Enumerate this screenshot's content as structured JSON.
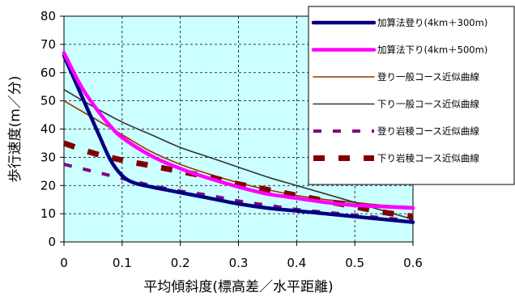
{
  "chart_data": {
    "type": "line",
    "xlabel": "平均傾斜度(標高差／水平距離)",
    "ylabel": "歩行速度(m／分)",
    "xlim": [
      0,
      0.6
    ],
    "ylim": [
      0,
      80
    ],
    "xticks": [
      "0",
      "0.1",
      "0.2",
      "0.3",
      "0.4",
      "0.5",
      "0.6"
    ],
    "yticks": [
      "0",
      "10",
      "20",
      "30",
      "40",
      "50",
      "60",
      "70",
      "80"
    ],
    "grid": "dashed",
    "plot_background": "#ccffff",
    "legend_position": "top-right",
    "series": [
      {
        "name": "加算法登り(4km＋300m)",
        "color": "#000080",
        "style": "thick",
        "x": [
          0,
          0.03,
          0.06,
          0.08,
          0.1,
          0.12,
          0.15,
          0.2,
          0.25,
          0.3,
          0.35,
          0.4,
          0.45,
          0.5,
          0.55,
          0.6
        ],
        "y": [
          66,
          52,
          38,
          29,
          23.5,
          21,
          19.5,
          17.5,
          15.5,
          13.5,
          12,
          11,
          10,
          9,
          8,
          7
        ]
      },
      {
        "name": "加算法下り(4km＋500m)",
        "color": "#ff00ff",
        "style": "thick",
        "x": [
          0,
          0.03,
          0.06,
          0.08,
          0.1,
          0.15,
          0.2,
          0.25,
          0.3,
          0.35,
          0.4,
          0.45,
          0.5,
          0.55,
          0.6
        ],
        "y": [
          67,
          55,
          46,
          41,
          37,
          30.5,
          26,
          22.5,
          19.5,
          17,
          15.5,
          14,
          13,
          12.5,
          12
        ]
      },
      {
        "name": "登り一般コース近似曲線",
        "color": "#993300",
        "style": "thin",
        "x": [
          0,
          0.05,
          0.1,
          0.15,
          0.2,
          0.25,
          0.3,
          0.35,
          0.4,
          0.45,
          0.5,
          0.55,
          0.6
        ],
        "y": [
          50,
          44,
          38,
          32,
          27.5,
          24,
          21,
          18.5,
          16.5,
          15,
          14,
          13,
          12.5
        ]
      },
      {
        "name": "下り一般コース近似曲線",
        "color": "#333333",
        "style": "thin",
        "x": [
          0,
          0.05,
          0.1,
          0.15,
          0.2,
          0.25,
          0.3,
          0.35,
          0.4,
          0.45,
          0.5,
          0.55,
          0.6
        ],
        "y": [
          54,
          48,
          42.5,
          38,
          33.5,
          30,
          26.5,
          23,
          20,
          17,
          14,
          11,
          8
        ]
      },
      {
        "name": "登り岩稜コース近似曲線",
        "color": "#800080",
        "style": "dashed-small",
        "x": [
          0,
          0.05,
          0.1,
          0.15,
          0.2,
          0.25,
          0.3,
          0.35,
          0.4,
          0.45,
          0.5,
          0.55,
          0.6
        ],
        "y": [
          27.5,
          25,
          22.5,
          20,
          18,
          16.5,
          14.5,
          13,
          11.5,
          10.5,
          9.5,
          8.5,
          7.5
        ]
      },
      {
        "name": "下り岩稜コース近似曲線",
        "color": "#800000",
        "style": "dashed-large",
        "x": [
          0,
          0.05,
          0.1,
          0.15,
          0.2,
          0.25,
          0.3,
          0.35,
          0.4,
          0.45,
          0.5,
          0.55,
          0.6
        ],
        "y": [
          35,
          31.5,
          29,
          27,
          25,
          23,
          20.5,
          18.5,
          16.5,
          14.5,
          12.5,
          10.5,
          9
        ]
      }
    ]
  }
}
